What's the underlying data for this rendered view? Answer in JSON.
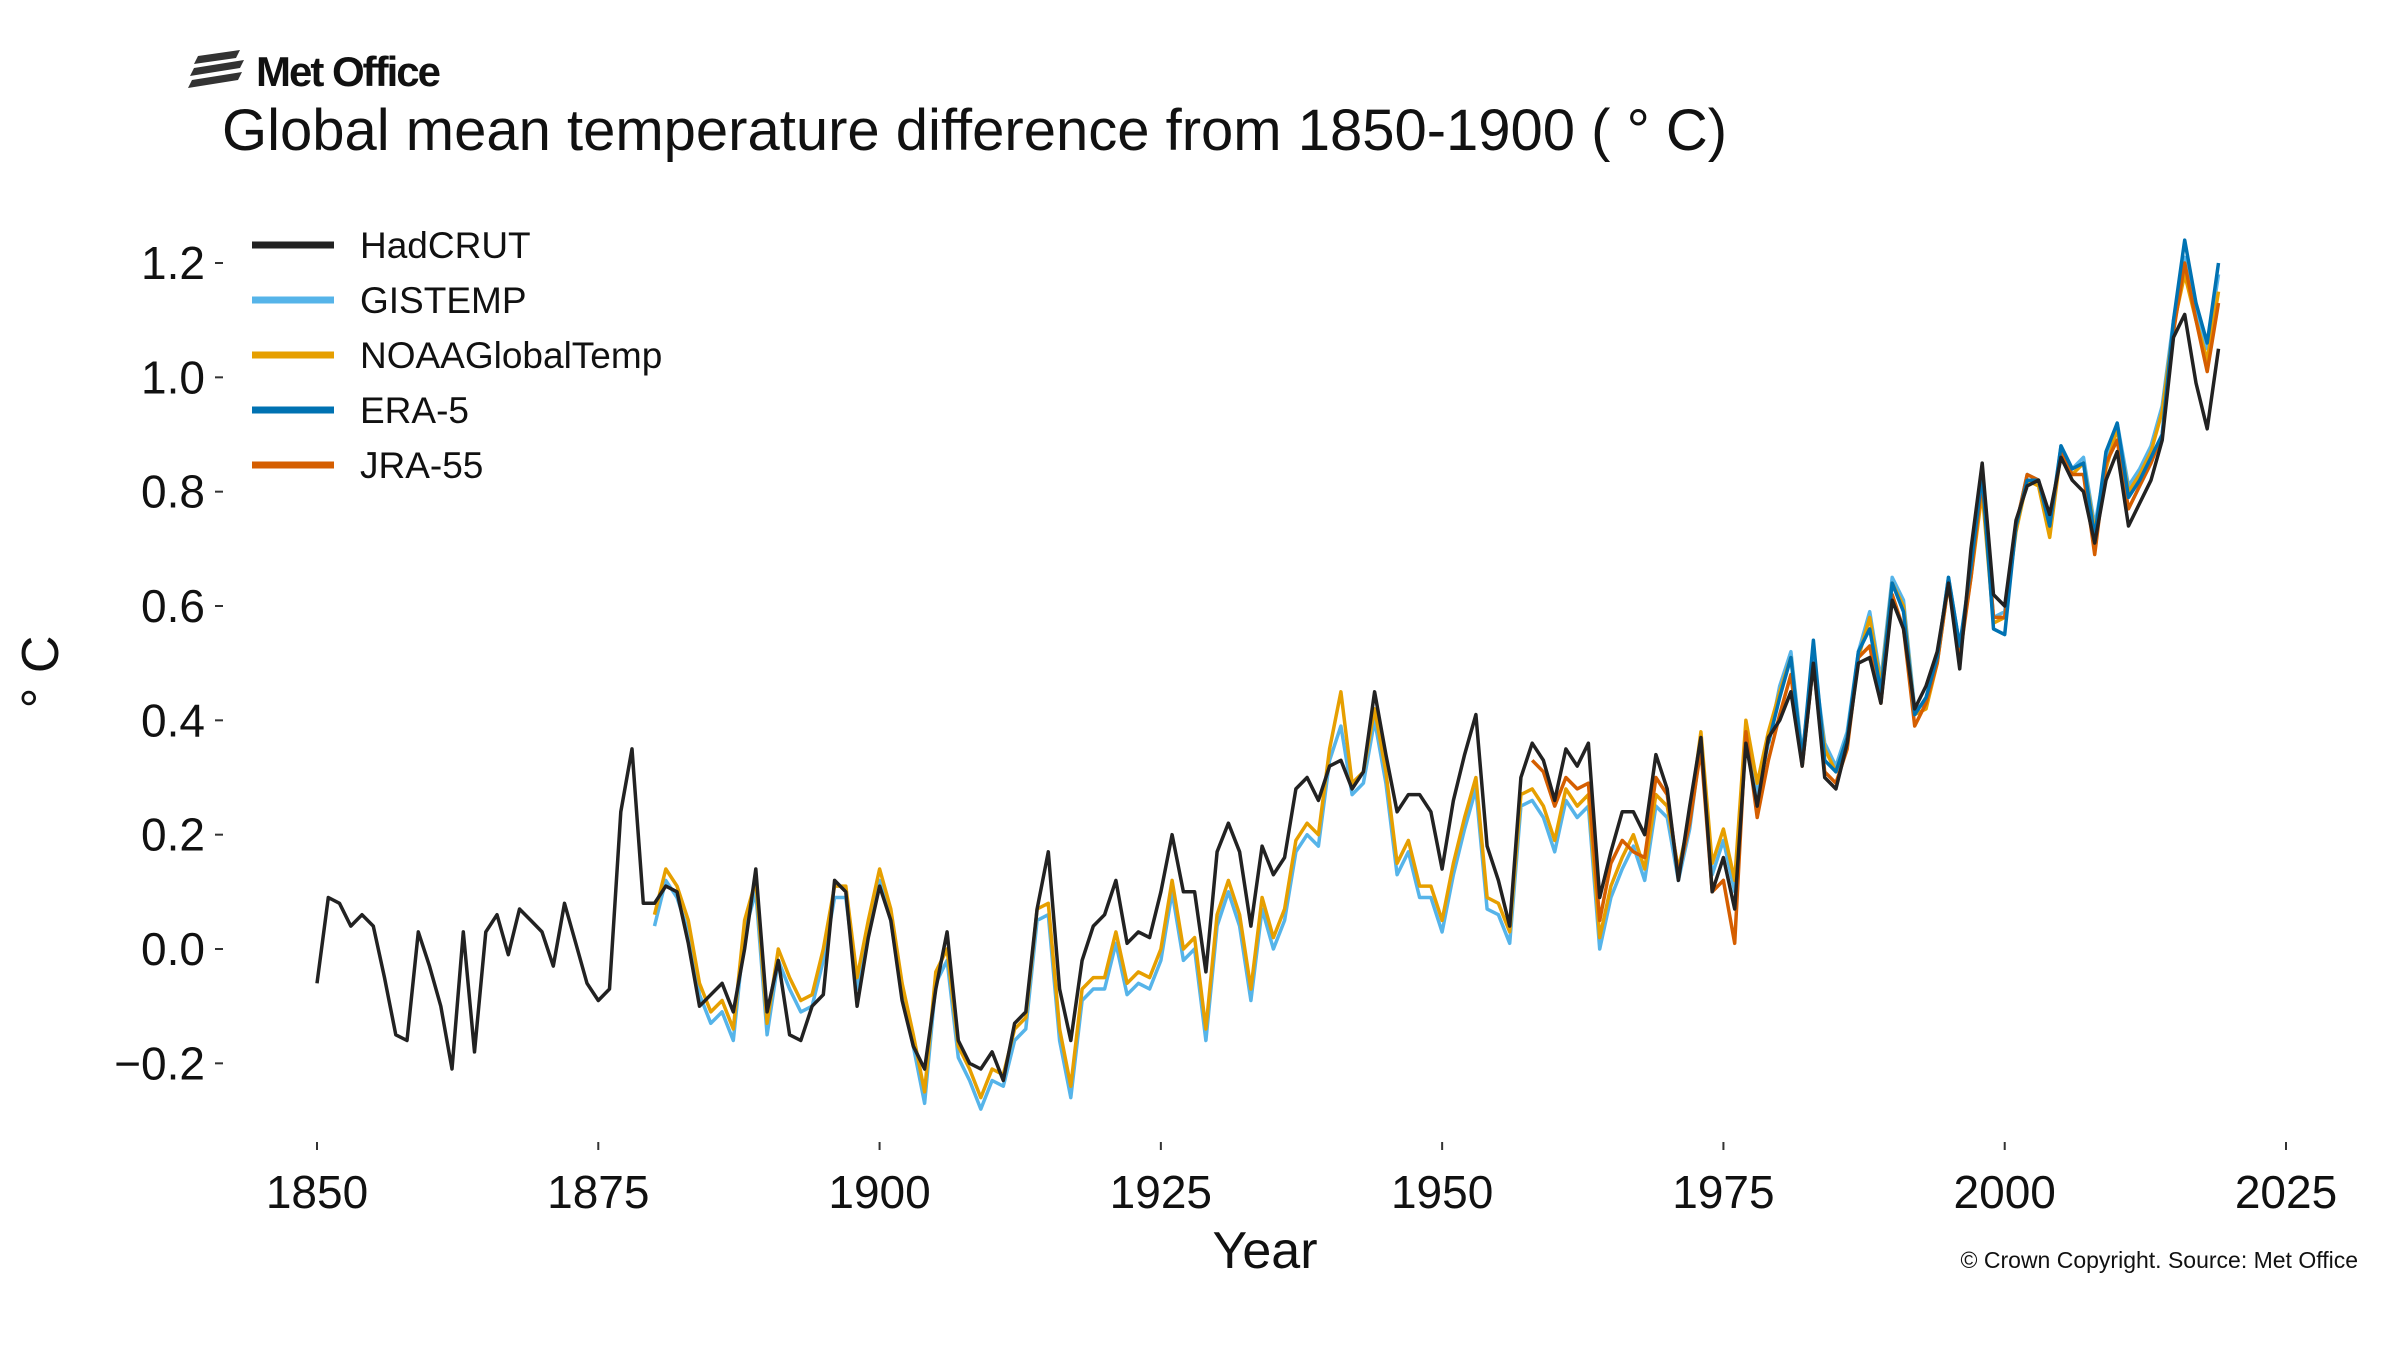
{
  "logo": {
    "text": "Met Office"
  },
  "copyright": "© Crown Copyright. Source: Met Office",
  "chart_data": {
    "type": "line",
    "title": "Global mean temperature difference from 1850-1900 ( ° C)",
    "xlabel": "Year",
    "ylabel": "° C",
    "xlim": [
      1842,
      2028
    ],
    "ylim": [
      -0.3,
      1.25
    ],
    "xticks": [
      1850,
      1875,
      1900,
      1925,
      1950,
      1975,
      2000,
      2025
    ],
    "yticks": [
      -0.2,
      0.0,
      0.2,
      0.4,
      0.6,
      0.8,
      1.0,
      1.2
    ],
    "ytick_labels": [
      "−0.2",
      "0.0",
      "0.2",
      "0.4",
      "0.6",
      "0.8",
      "1.0",
      "1.2"
    ],
    "grid": false,
    "legend_position": "top-left",
    "series": [
      {
        "name": "HadCRUT",
        "color": "#222222",
        "start": 1850,
        "values": [
          -0.06,
          0.09,
          0.08,
          0.04,
          0.06,
          0.04,
          -0.05,
          -0.15,
          -0.16,
          0.03,
          -0.03,
          -0.1,
          -0.21,
          0.03,
          -0.18,
          0.03,
          0.06,
          -0.01,
          0.07,
          0.05,
          0.03,
          -0.03,
          0.08,
          0.01,
          -0.06,
          -0.09,
          -0.07,
          0.24,
          0.35,
          0.08,
          0.08,
          0.11,
          0.1,
          0.01,
          -0.1,
          -0.08,
          -0.06,
          -0.11,
          0.0,
          0.14,
          -0.11,
          -0.02,
          -0.15,
          -0.16,
          -0.1,
          -0.08,
          0.12,
          0.1,
          -0.1,
          0.02,
          0.11,
          0.05,
          -0.09,
          -0.17,
          -0.21,
          -0.07,
          0.03,
          -0.16,
          -0.2,
          -0.21,
          -0.18,
          -0.23,
          -0.13,
          -0.11,
          0.07,
          0.17,
          -0.07,
          -0.16,
          -0.02,
          0.04,
          0.06,
          0.12,
          0.01,
          0.03,
          0.02,
          0.1,
          0.2,
          0.1,
          0.1,
          -0.04,
          0.17,
          0.22,
          0.17,
          0.04,
          0.18,
          0.13,
          0.16,
          0.28,
          0.3,
          0.26,
          0.32,
          0.33,
          0.28,
          0.31,
          0.45,
          0.34,
          0.24,
          0.27,
          0.27,
          0.24,
          0.14,
          0.26,
          0.34,
          0.41,
          0.18,
          0.12,
          0.04,
          0.3,
          0.36,
          0.33,
          0.26,
          0.35,
          0.32,
          0.36,
          0.09,
          0.17,
          0.24,
          0.24,
          0.2,
          0.34,
          0.28,
          0.12,
          0.25,
          0.37,
          0.1,
          0.16,
          0.07,
          0.36,
          0.25,
          0.37,
          0.4,
          0.45,
          0.32,
          0.5,
          0.3,
          0.28,
          0.36,
          0.5,
          0.51,
          0.43,
          0.61,
          0.56,
          0.42,
          0.46,
          0.52,
          0.64,
          0.49,
          0.7,
          0.85,
          0.62,
          0.6,
          0.75,
          0.81,
          0.82,
          0.76,
          0.86,
          0.82,
          0.8,
          0.71,
          0.82,
          0.87,
          0.74,
          0.78,
          0.82,
          0.89,
          1.07,
          1.11,
          0.99,
          0.91,
          1.05
        ]
      },
      {
        "name": "GISTEMP",
        "color": "#56b4e9",
        "start": 1880,
        "values": [
          0.04,
          0.12,
          0.09,
          0.03,
          -0.08,
          -0.13,
          -0.11,
          -0.16,
          0.03,
          0.1,
          -0.15,
          -0.02,
          -0.07,
          -0.11,
          -0.1,
          -0.02,
          0.09,
          0.09,
          -0.07,
          0.03,
          0.12,
          0.05,
          -0.08,
          -0.17,
          -0.27,
          -0.06,
          -0.02,
          -0.19,
          -0.23,
          -0.28,
          -0.23,
          -0.24,
          -0.16,
          -0.14,
          0.05,
          0.06,
          -0.16,
          -0.26,
          -0.09,
          -0.07,
          -0.07,
          0.01,
          -0.08,
          -0.06,
          -0.07,
          -0.02,
          0.1,
          -0.02,
          0.0,
          -0.16,
          0.04,
          0.1,
          0.04,
          -0.09,
          0.07,
          0.0,
          0.05,
          0.17,
          0.2,
          0.18,
          0.33,
          0.39,
          0.27,
          0.29,
          0.4,
          0.29,
          0.13,
          0.17,
          0.09,
          0.09,
          0.03,
          0.13,
          0.21,
          0.28,
          0.07,
          0.06,
          0.01,
          0.25,
          0.26,
          0.23,
          0.17,
          0.26,
          0.23,
          0.25,
          0.0,
          0.09,
          0.14,
          0.18,
          0.12,
          0.25,
          0.23,
          0.12,
          0.21,
          0.36,
          0.13,
          0.19,
          0.1,
          0.38,
          0.27,
          0.36,
          0.46,
          0.52,
          0.34,
          0.51,
          0.36,
          0.32,
          0.38,
          0.52,
          0.59,
          0.47,
          0.65,
          0.61,
          0.42,
          0.43,
          0.51,
          0.65,
          0.53,
          0.66,
          0.81,
          0.58,
          0.59,
          0.74,
          0.83,
          0.82,
          0.73,
          0.88,
          0.84,
          0.86,
          0.74,
          0.85,
          0.92,
          0.81,
          0.84,
          0.88,
          0.95,
          1.1,
          1.21,
          1.12,
          1.05,
          1.18
        ]
      },
      {
        "name": "NOAAGlobalTemp",
        "color": "#e69f00",
        "start": 1880,
        "values": [
          0.06,
          0.14,
          0.11,
          0.05,
          -0.06,
          -0.11,
          -0.09,
          -0.14,
          0.05,
          0.12,
          -0.13,
          0.0,
          -0.05,
          -0.09,
          -0.08,
          0.0,
          0.11,
          0.11,
          -0.05,
          0.05,
          0.14,
          0.07,
          -0.06,
          -0.15,
          -0.25,
          -0.04,
          0.0,
          -0.17,
          -0.21,
          -0.26,
          -0.21,
          -0.22,
          -0.14,
          -0.12,
          0.07,
          0.08,
          -0.14,
          -0.24,
          -0.07,
          -0.05,
          -0.05,
          0.03,
          -0.06,
          -0.04,
          -0.05,
          0.0,
          0.12,
          0.0,
          0.02,
          -0.14,
          0.06,
          0.12,
          0.06,
          -0.07,
          0.09,
          0.02,
          0.07,
          0.19,
          0.22,
          0.2,
          0.35,
          0.45,
          0.29,
          0.31,
          0.42,
          0.31,
          0.15,
          0.19,
          0.11,
          0.11,
          0.05,
          0.15,
          0.23,
          0.3,
          0.09,
          0.08,
          0.03,
          0.27,
          0.28,
          0.25,
          0.19,
          0.28,
          0.25,
          0.27,
          0.02,
          0.11,
          0.16,
          0.2,
          0.14,
          0.27,
          0.25,
          0.14,
          0.23,
          0.38,
          0.15,
          0.21,
          0.12,
          0.4,
          0.29,
          0.38,
          0.45,
          0.51,
          0.33,
          0.5,
          0.35,
          0.31,
          0.37,
          0.51,
          0.58,
          0.46,
          0.64,
          0.6,
          0.41,
          0.42,
          0.5,
          0.64,
          0.52,
          0.65,
          0.8,
          0.57,
          0.58,
          0.73,
          0.82,
          0.81,
          0.72,
          0.87,
          0.83,
          0.85,
          0.73,
          0.84,
          0.91,
          0.8,
          0.83,
          0.87,
          0.94,
          1.09,
          1.18,
          1.1,
          1.03,
          1.15
        ]
      },
      {
        "name": "ERA-5",
        "color": "#0072b2",
        "start": 1979,
        "values": [
          0.36,
          0.44,
          0.51,
          0.33,
          0.54,
          0.33,
          0.31,
          0.37,
          0.52,
          0.56,
          0.45,
          0.64,
          0.59,
          0.41,
          0.44,
          0.51,
          0.65,
          0.53,
          0.67,
          0.83,
          0.56,
          0.55,
          0.74,
          0.82,
          0.82,
          0.74,
          0.88,
          0.84,
          0.85,
          0.72,
          0.87,
          0.92,
          0.79,
          0.82,
          0.86,
          0.9,
          1.1,
          1.24,
          1.13,
          1.06,
          1.2
        ]
      },
      {
        "name": "JRA-55",
        "color": "#d55e00",
        "start": 1958,
        "values": [
          0.33,
          0.31,
          0.25,
          0.3,
          0.28,
          0.29,
          0.05,
          0.15,
          0.19,
          0.17,
          0.16,
          0.3,
          0.27,
          0.13,
          0.22,
          0.35,
          0.1,
          0.12,
          0.01,
          0.38,
          0.23,
          0.33,
          0.41,
          0.48,
          0.32,
          0.5,
          0.31,
          0.29,
          0.35,
          0.51,
          0.53,
          0.43,
          0.62,
          0.56,
          0.39,
          0.43,
          0.5,
          0.64,
          0.51,
          0.65,
          0.82,
          0.58,
          0.58,
          0.74,
          0.83,
          0.82,
          0.74,
          0.87,
          0.83,
          0.83,
          0.69,
          0.85,
          0.89,
          0.77,
          0.81,
          0.85,
          0.9,
          1.08,
          1.2,
          1.1,
          1.01,
          1.13
        ]
      }
    ],
    "draw_order": [
      "GISTEMP",
      "NOAAGlobalTemp",
      "JRA-55",
      "ERA-5",
      "HadCRUT"
    ]
  }
}
